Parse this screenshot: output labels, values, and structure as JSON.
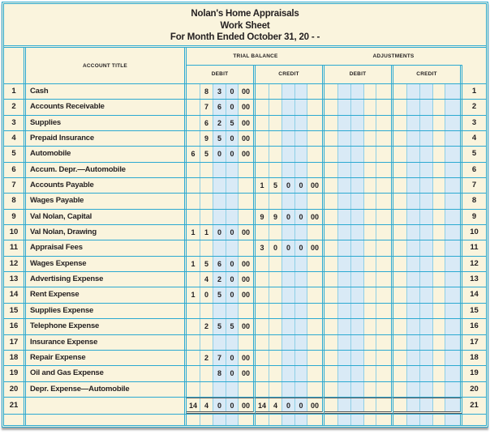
{
  "title": {
    "company": "Nolan's Home Appraisals",
    "report": "Work Sheet",
    "period": "For Month Ended October 31, 20 - -"
  },
  "headers": {
    "account_title": "ACCOUNT TITLE",
    "trial_balance": "TRIAL BALANCE",
    "adjustments": "ADJUSTMENTS",
    "debit": "DEBIT",
    "credit": "CREDIT"
  },
  "colors": {
    "paper": "#FAF4DD",
    "stripe": "#D9EAF6",
    "grid": "#2BA9D1",
    "total_rule": "#58595B",
    "ink": "#231F20"
  },
  "rows": [
    {
      "line": "1",
      "account": "Cash",
      "tb_debit": [
        "",
        "8",
        "3",
        "0",
        "00"
      ],
      "tb_credit": null,
      "adj_debit": null,
      "adj_credit": null,
      "total": false
    },
    {
      "line": "2",
      "account": "Accounts Receivable",
      "tb_debit": [
        "",
        "7",
        "6",
        "0",
        "00"
      ],
      "tb_credit": null,
      "adj_debit": null,
      "adj_credit": null,
      "total": false
    },
    {
      "line": "3",
      "account": "Supplies",
      "tb_debit": [
        "",
        "6",
        "2",
        "5",
        "00"
      ],
      "tb_credit": null,
      "adj_debit": null,
      "adj_credit": null,
      "total": false
    },
    {
      "line": "4",
      "account": "Prepaid Insurance",
      "tb_debit": [
        "",
        "9",
        "5",
        "0",
        "00"
      ],
      "tb_credit": null,
      "adj_debit": null,
      "adj_credit": null,
      "total": false
    },
    {
      "line": "5",
      "account": "Automobile",
      "tb_debit": [
        "6",
        "5",
        "0",
        "0",
        "00"
      ],
      "tb_credit": null,
      "adj_debit": null,
      "adj_credit": null,
      "total": false
    },
    {
      "line": "6",
      "account": "Accum. Depr.—Automobile",
      "tb_debit": null,
      "tb_credit": null,
      "adj_debit": null,
      "adj_credit": null,
      "total": false
    },
    {
      "line": "7",
      "account": "Accounts Payable",
      "tb_debit": null,
      "tb_credit": [
        "1",
        "5",
        "0",
        "0",
        "00"
      ],
      "adj_debit": null,
      "adj_credit": null,
      "total": false
    },
    {
      "line": "8",
      "account": "Wages Payable",
      "tb_debit": null,
      "tb_credit": null,
      "adj_debit": null,
      "adj_credit": null,
      "total": false
    },
    {
      "line": "9",
      "account": "Val Nolan, Capital",
      "tb_debit": null,
      "tb_credit": [
        "9",
        "9",
        "0",
        "0",
        "00"
      ],
      "adj_debit": null,
      "adj_credit": null,
      "total": false
    },
    {
      "line": "10",
      "account": "Val Nolan, Drawing",
      "tb_debit": [
        "1",
        "1",
        "0",
        "0",
        "00"
      ],
      "tb_credit": null,
      "adj_debit": null,
      "adj_credit": null,
      "total": false
    },
    {
      "line": "11",
      "account": "Appraisal Fees",
      "tb_debit": null,
      "tb_credit": [
        "3",
        "0",
        "0",
        "0",
        "00"
      ],
      "adj_debit": null,
      "adj_credit": null,
      "total": false
    },
    {
      "line": "12",
      "account": "Wages Expense",
      "tb_debit": [
        "1",
        "5",
        "6",
        "0",
        "00"
      ],
      "tb_credit": null,
      "adj_debit": null,
      "adj_credit": null,
      "total": false
    },
    {
      "line": "13",
      "account": "Advertising Expense",
      "tb_debit": [
        "",
        "4",
        "2",
        "0",
        "00"
      ],
      "tb_credit": null,
      "adj_debit": null,
      "adj_credit": null,
      "total": false
    },
    {
      "line": "14",
      "account": "Rent Expense",
      "tb_debit": [
        "1",
        "0",
        "5",
        "0",
        "00"
      ],
      "tb_credit": null,
      "adj_debit": null,
      "adj_credit": null,
      "total": false
    },
    {
      "line": "15",
      "account": "Supplies Expense",
      "tb_debit": null,
      "tb_credit": null,
      "adj_debit": null,
      "adj_credit": null,
      "total": false
    },
    {
      "line": "16",
      "account": "Telephone Expense",
      "tb_debit": [
        "",
        "2",
        "5",
        "5",
        "00"
      ],
      "tb_credit": null,
      "adj_debit": null,
      "adj_credit": null,
      "total": false
    },
    {
      "line": "17",
      "account": "Insurance Expense",
      "tb_debit": null,
      "tb_credit": null,
      "adj_debit": null,
      "adj_credit": null,
      "total": false
    },
    {
      "line": "18",
      "account": "Repair Expense",
      "tb_debit": [
        "",
        "2",
        "7",
        "0",
        "00"
      ],
      "tb_credit": null,
      "adj_debit": null,
      "adj_credit": null,
      "total": false
    },
    {
      "line": "19",
      "account": "Oil and Gas Expense",
      "tb_debit": [
        "",
        "",
        "8",
        "0",
        "00"
      ],
      "tb_credit": null,
      "adj_debit": null,
      "adj_credit": null,
      "total": false
    },
    {
      "line": "20",
      "account": "Depr. Expense—Automobile",
      "tb_debit": null,
      "tb_credit": null,
      "adj_debit": null,
      "adj_credit": null,
      "total": false
    },
    {
      "line": "21",
      "account": "",
      "tb_debit": [
        "14",
        "4",
        "0",
        "0",
        "00"
      ],
      "tb_credit": [
        "14",
        "4",
        "0",
        "0",
        "00"
      ],
      "adj_debit": null,
      "adj_credit": null,
      "total": true
    }
  ]
}
